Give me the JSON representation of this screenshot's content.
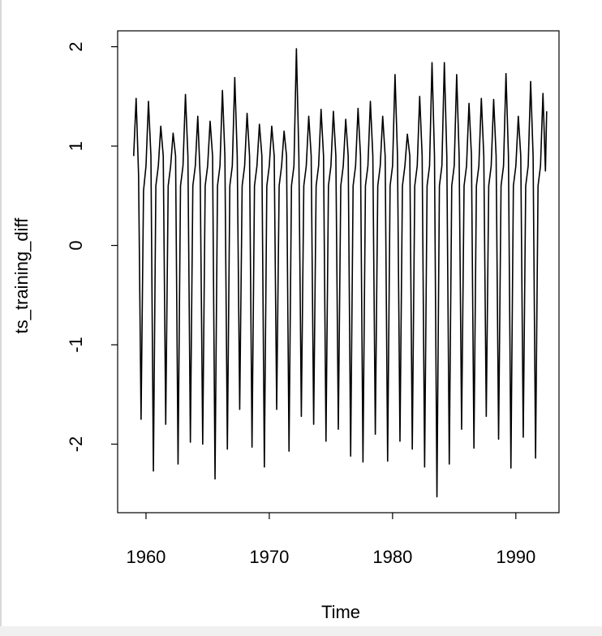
{
  "chart_data": {
    "type": "line",
    "xlabel": "Time",
    "ylabel": "ts_training_diff",
    "x": [
      1959,
      1959.2,
      1959.4,
      1959.6,
      1959.8,
      1960,
      1960.2,
      1960.4,
      1960.6,
      1960.8,
      1961,
      1961.2,
      1961.4,
      1961.6,
      1961.8,
      1962,
      1962.2,
      1962.4,
      1962.6,
      1962.8,
      1963,
      1963.2,
      1963.4,
      1963.6,
      1963.8,
      1964,
      1964.2,
      1964.4,
      1964.6,
      1964.8,
      1965,
      1965.2,
      1965.4,
      1965.6,
      1965.8,
      1966,
      1966.2,
      1966.4,
      1966.6,
      1966.8,
      1967,
      1967.2,
      1967.4,
      1967.6,
      1967.8,
      1968,
      1968.2,
      1968.4,
      1968.6,
      1968.8,
      1969,
      1969.2,
      1969.4,
      1969.6,
      1969.8,
      1970,
      1970.2,
      1970.4,
      1970.6,
      1970.8,
      1971,
      1971.2,
      1971.4,
      1971.6,
      1971.8,
      1972,
      1972.2,
      1972.4,
      1972.6,
      1972.8,
      1973,
      1973.2,
      1973.4,
      1973.6,
      1973.8,
      1974,
      1974.2,
      1974.4,
      1974.6,
      1974.8,
      1975,
      1975.2,
      1975.4,
      1975.6,
      1975.8,
      1976,
      1976.2,
      1976.4,
      1976.6,
      1976.8,
      1977,
      1977.2,
      1977.4,
      1977.6,
      1977.8,
      1978,
      1978.2,
      1978.4,
      1978.6,
      1978.8,
      1979,
      1979.2,
      1979.4,
      1979.6,
      1979.8,
      1980,
      1980.2,
      1980.4,
      1980.6,
      1980.8,
      1981,
      1981.2,
      1981.4,
      1981.6,
      1981.8,
      1982,
      1982.2,
      1982.4,
      1982.6,
      1982.8,
      1983,
      1983.2,
      1983.4,
      1983.6,
      1983.8,
      1984,
      1984.2,
      1984.4,
      1984.6,
      1984.8,
      1985,
      1985.2,
      1985.4,
      1985.6,
      1985.8,
      1986,
      1986.2,
      1986.4,
      1986.6,
      1986.8,
      1987,
      1987.2,
      1987.4,
      1987.6,
      1987.8,
      1988,
      1988.2,
      1988.4,
      1988.6,
      1988.8,
      1989,
      1989.2,
      1989.4,
      1989.6,
      1989.8,
      1990,
      1990.2,
      1990.4,
      1990.6,
      1990.8,
      1991,
      1991.2,
      1991.4,
      1991.6,
      1991.8,
      1992,
      1992.2,
      1992.4,
      1992.5
    ],
    "series": [
      {
        "color": "#000000",
        "values": [
          0.9,
          1.48,
          0.7,
          -1.75,
          0.55,
          0.8,
          1.45,
          0.9,
          -2.27,
          0.6,
          0.8,
          1.2,
          0.9,
          -1.8,
          0.6,
          0.8,
          1.13,
          0.9,
          -2.2,
          0.6,
          0.8,
          1.52,
          0.9,
          -1.98,
          0.6,
          0.8,
          1.3,
          0.67,
          -2.0,
          0.6,
          0.8,
          1.25,
          0.9,
          -2.35,
          0.6,
          0.8,
          1.56,
          0.9,
          -2.05,
          0.6,
          0.8,
          1.69,
          0.9,
          -1.65,
          0.6,
          0.8,
          1.33,
          0.9,
          -2.03,
          0.6,
          0.8,
          1.22,
          0.9,
          -2.23,
          0.6,
          0.8,
          1.2,
          0.9,
          -1.65,
          0.6,
          0.8,
          1.15,
          0.9,
          -2.07,
          0.6,
          0.8,
          1.98,
          0.9,
          -1.72,
          0.6,
          0.8,
          1.3,
          0.9,
          -1.8,
          0.6,
          0.8,
          1.37,
          0.9,
          -1.97,
          0.6,
          0.8,
          1.35,
          0.9,
          -1.85,
          0.6,
          0.8,
          1.27,
          0.9,
          -2.12,
          0.6,
          0.8,
          1.38,
          0.9,
          -2.18,
          0.6,
          0.8,
          1.45,
          0.9,
          -1.9,
          0.6,
          0.8,
          1.3,
          0.9,
          -2.17,
          0.6,
          0.8,
          1.72,
          0.9,
          -1.97,
          0.6,
          0.8,
          1.12,
          0.9,
          -2.05,
          0.6,
          0.8,
          1.5,
          0.9,
          -2.23,
          0.6,
          0.8,
          1.84,
          0.9,
          -2.53,
          0.6,
          0.8,
          1.84,
          0.9,
          -2.2,
          0.6,
          0.8,
          1.72,
          0.9,
          -1.85,
          0.6,
          0.8,
          1.43,
          0.9,
          -2.04,
          0.6,
          0.8,
          1.48,
          0.9,
          -1.72,
          0.6,
          0.8,
          1.47,
          0.9,
          -1.95,
          0.6,
          0.8,
          1.73,
          0.9,
          -2.24,
          0.6,
          0.8,
          1.3,
          0.9,
          -1.93,
          0.6,
          0.8,
          1.65,
          0.9,
          -2.14,
          0.6,
          0.8,
          1.53,
          0.75,
          1.35
        ]
      }
    ],
    "xlim": [
      1957.7,
      1993.5
    ],
    "ylim": [
      -2.69,
      2.16
    ],
    "xticks": [
      1960,
      1970,
      1980,
      1990
    ],
    "yticks": [
      -2,
      -1,
      0,
      1,
      2
    ],
    "grid": false
  }
}
